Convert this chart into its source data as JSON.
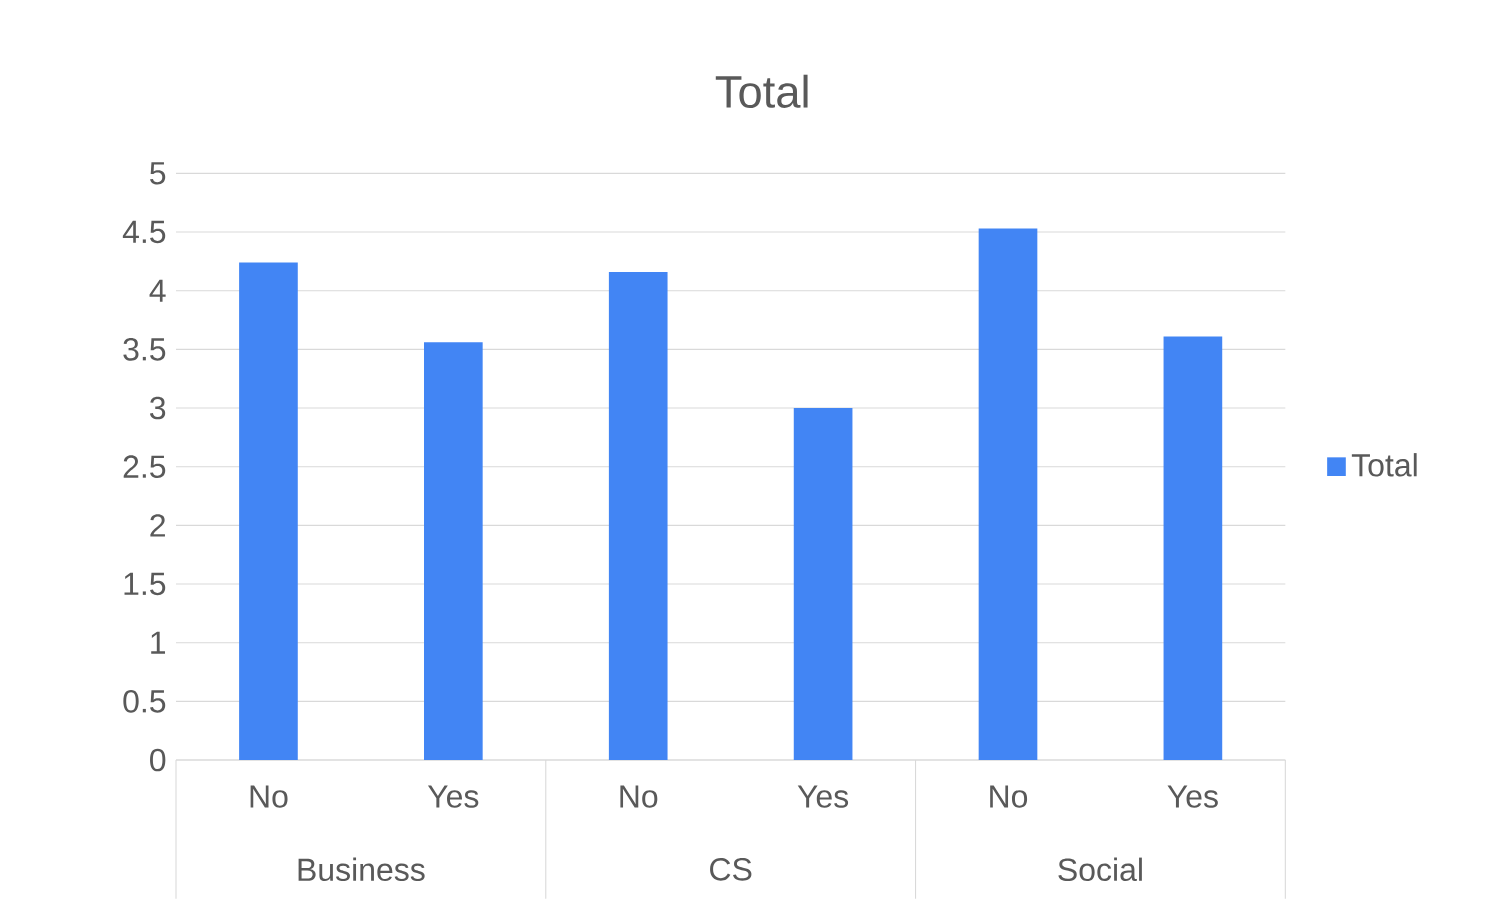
{
  "chart_data": {
    "type": "bar",
    "title": "Total",
    "categories": [
      "No",
      "Yes",
      "No",
      "Yes",
      "No",
      "Yes"
    ],
    "series": [
      {
        "name": "Total",
        "color": "#4285f4",
        "values": [
          4.24,
          3.56,
          4.16,
          3.0,
          4.53,
          3.61
        ]
      }
    ],
    "ylim": [
      0,
      5
    ],
    "yticks": [
      0,
      0.5,
      1,
      1.5,
      2,
      2.5,
      3,
      3.5,
      4,
      4.5,
      5
    ],
    "grid": "y",
    "legend": "right",
    "annotations": [
      "Business",
      "CS",
      "Social"
    ]
  }
}
